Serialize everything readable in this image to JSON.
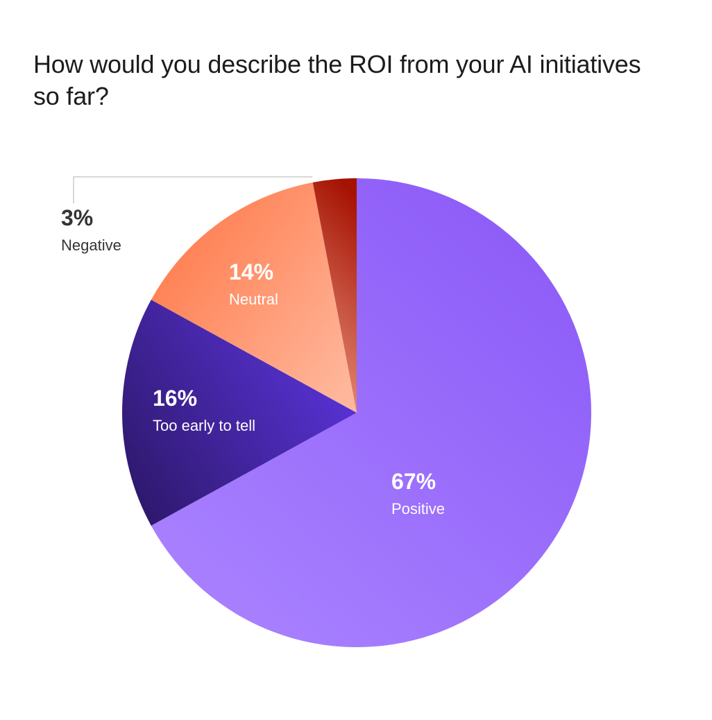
{
  "chart_data": {
    "type": "pie",
    "title": "How would you describe the ROI from your AI initiatives so far?",
    "slices": [
      {
        "label": "Positive",
        "value": 67,
        "pct_text": "67%",
        "color_light": "#a982ff",
        "color_dark": "#8a58f7"
      },
      {
        "label": "Too early to tell",
        "value": 16,
        "pct_text": "16%",
        "color_light": "#5b34dc",
        "color_dark": "#2c1768"
      },
      {
        "label": "Neutral",
        "value": 14,
        "pct_text": "14%",
        "color_light": "#ffb79c",
        "color_dark": "#ff7a4b"
      },
      {
        "label": "Negative",
        "value": 3,
        "pct_text": "3%",
        "color_light": "#e8937e",
        "color_dark": "#a51202"
      }
    ],
    "label_colors": {
      "inside": "#ffffff",
      "outside": "#333333"
    },
    "leader_line_color": "#cccccc"
  }
}
